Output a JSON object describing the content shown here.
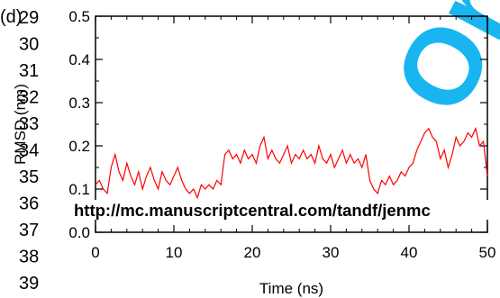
{
  "panel_label": "(d)",
  "line_numbers": [
    "29",
    "30",
    "31",
    "32",
    "33",
    "34",
    "35",
    "36",
    "37",
    "38",
    "39"
  ],
  "watermark_text": "Or",
  "footer_url": "http://mc.manuscriptcentral.com/tandf/jenmc",
  "colors": {
    "series": "#ff0000",
    "axis": "#000000",
    "watermark": "#00aeef"
  },
  "chart_data": {
    "type": "line",
    "title": "",
    "xlabel": "Time (ns)",
    "ylabel": "RMSD (nm)",
    "xlim": [
      0,
      50
    ],
    "ylim": [
      0.0,
      0.5
    ],
    "xticks": [
      0,
      10,
      20,
      30,
      40,
      50
    ],
    "xtick_labels": [
      "0",
      "10",
      "20",
      "30",
      "40",
      "50"
    ],
    "yticks": [
      0.0,
      0.1,
      0.2,
      0.3,
      0.4,
      0.5
    ],
    "ytick_labels": [
      "0.0",
      "0.1",
      "0.2",
      "0.3",
      "0.4",
      "0.5"
    ],
    "grid": false,
    "legend": "none",
    "series": [
      {
        "x": [
          0,
          0.5,
          1,
          1.5,
          2,
          2.5,
          3,
          3.5,
          4,
          4.5,
          5,
          5.5,
          6,
          6.5,
          7,
          7.5,
          8,
          8.5,
          9,
          9.5,
          10,
          10.5,
          11,
          11.5,
          12,
          12.5,
          13,
          13.5,
          14,
          14.5,
          15,
          15.5,
          16,
          16.5,
          17,
          17.5,
          18,
          18.5,
          19,
          19.5,
          20,
          20.5,
          21,
          21.5,
          22,
          22.5,
          23,
          23.5,
          24,
          24.5,
          25,
          25.5,
          26,
          26.5,
          27,
          27.5,
          28,
          28.5,
          29,
          29.5,
          30,
          30.5,
          31,
          31.5,
          32,
          32.5,
          33,
          33.5,
          34,
          34.5,
          35,
          35.5,
          36,
          36.5,
          37,
          37.5,
          38,
          38.5,
          39,
          39.5,
          40,
          40.5,
          41,
          41.5,
          42,
          42.5,
          43,
          43.5,
          44,
          44.5,
          45,
          45.5,
          46,
          46.5,
          47,
          47.5,
          48,
          48.5,
          49,
          49.5,
          50
        ],
        "y": [
          0.11,
          0.12,
          0.1,
          0.09,
          0.15,
          0.18,
          0.14,
          0.12,
          0.16,
          0.13,
          0.11,
          0.14,
          0.1,
          0.13,
          0.15,
          0.12,
          0.1,
          0.14,
          0.12,
          0.11,
          0.13,
          0.15,
          0.12,
          0.1,
          0.09,
          0.1,
          0.08,
          0.11,
          0.1,
          0.11,
          0.1,
          0.12,
          0.11,
          0.18,
          0.19,
          0.17,
          0.18,
          0.16,
          0.19,
          0.17,
          0.18,
          0.16,
          0.2,
          0.22,
          0.17,
          0.19,
          0.17,
          0.16,
          0.18,
          0.2,
          0.16,
          0.18,
          0.17,
          0.19,
          0.17,
          0.18,
          0.16,
          0.2,
          0.17,
          0.16,
          0.18,
          0.15,
          0.17,
          0.19,
          0.16,
          0.18,
          0.16,
          0.17,
          0.15,
          0.18,
          0.12,
          0.1,
          0.09,
          0.12,
          0.11,
          0.13,
          0.11,
          0.12,
          0.14,
          0.13,
          0.15,
          0.16,
          0.19,
          0.21,
          0.23,
          0.24,
          0.22,
          0.21,
          0.17,
          0.19,
          0.15,
          0.18,
          0.22,
          0.2,
          0.21,
          0.23,
          0.22,
          0.24,
          0.2,
          0.21,
          0.13
        ]
      }
    ]
  }
}
